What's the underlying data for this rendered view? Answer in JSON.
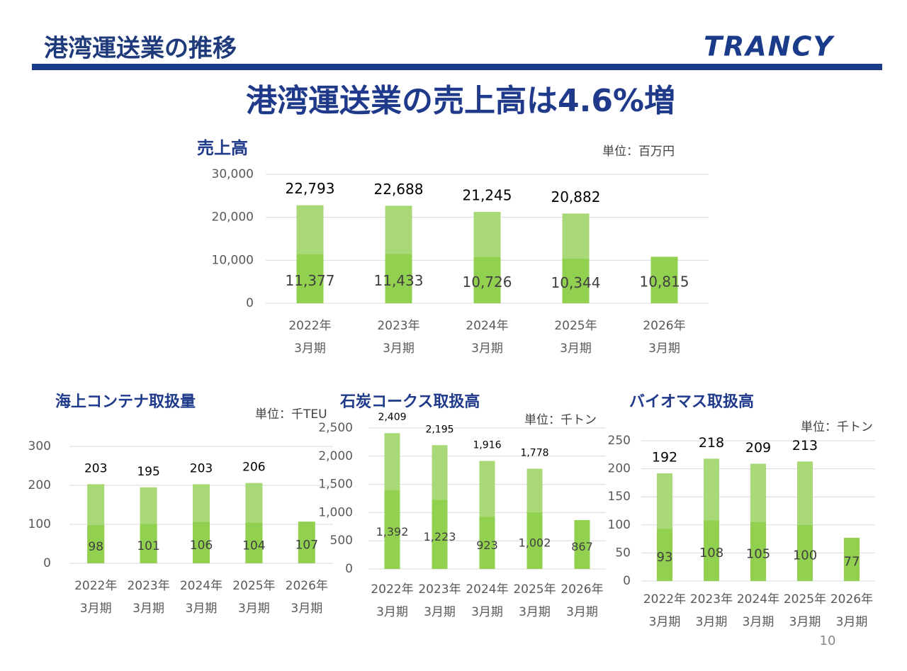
{
  "header": {
    "title": "港湾運送業の推移",
    "logo": "TRANCY"
  },
  "headline": "港湾運送業の売上高は4.6%増",
  "page_number": "10",
  "chart_data": [
    {
      "type": "bar",
      "overlap": true,
      "title": "売上高",
      "unit": "単位：百万円",
      "categories": [
        [
          "2022年",
          "3月期"
        ],
        [
          "2023年",
          "3月期"
        ],
        [
          "2024年",
          "3月期"
        ],
        [
          "2025年",
          "3月期"
        ],
        [
          "2026年",
          "3月期"
        ]
      ],
      "series": [
        {
          "color": "#a9d977",
          "values": [
            22793,
            22688,
            21245,
            20882,
            null
          ],
          "value_labels": [
            "22,793",
            "22,688",
            "21,245",
            "20,882",
            null
          ]
        },
        {
          "color": "#92d050",
          "values": [
            11377,
            11433,
            10726,
            10344,
            10815
          ],
          "value_labels": [
            "11,377",
            "11,433",
            "10,726",
            "10,344",
            "10,815"
          ]
        }
      ],
      "ylim": [
        0,
        30000
      ],
      "yticks": [
        0,
        {
          "value": 10000,
          "label": "10,000"
        },
        {
          "value": 20000,
          "label": "20,000"
        },
        {
          "value": 30000,
          "label": "30,000"
        }
      ],
      "grid": true
    },
    {
      "type": "bar",
      "overlap": true,
      "title": "海上コンテナ取扱量",
      "unit": "単位：千TEU",
      "categories": [
        [
          "2022年",
          "3月期"
        ],
        [
          "2023年",
          "3月期"
        ],
        [
          "2024年",
          "3月期"
        ],
        [
          "2025年",
          "3月期"
        ],
        [
          "2026年",
          "3月期"
        ]
      ],
      "series": [
        {
          "color": "#a9d977",
          "values": [
            203,
            195,
            203,
            206,
            null
          ]
        },
        {
          "color": "#92d050",
          "values": [
            98,
            101,
            106,
            104,
            107
          ]
        }
      ],
      "ylim": [
        0,
        300
      ],
      "yticks": [
        0,
        100,
        200,
        300
      ],
      "grid": true
    },
    {
      "type": "bar",
      "overlap": true,
      "title": "石炭コークス取扱高",
      "unit": "単位：千トン",
      "categories": [
        [
          "2022年",
          "3月期"
        ],
        [
          "2023年",
          "3月期"
        ],
        [
          "2024年",
          "3月期"
        ],
        [
          "2025年",
          "3月期"
        ],
        [
          "2026年",
          "3月期"
        ]
      ],
      "series": [
        {
          "color": "#a9d977",
          "values": [
            2409,
            2195,
            1916,
            1778,
            null
          ],
          "value_labels": [
            "2,409",
            "2,195",
            "1,916",
            "1,778",
            null
          ]
        },
        {
          "color": "#92d050",
          "values": [
            1392,
            1223,
            923,
            1002,
            867
          ],
          "value_labels": [
            "1,392",
            "1,223",
            "923",
            "1,002",
            "867"
          ]
        }
      ],
      "ylim": [
        0,
        2500
      ],
      "yticks": [
        0,
        500,
        {
          "value": 1000,
          "label": "1,000"
        },
        {
          "value": 1500,
          "label": "1,500"
        },
        {
          "value": 2000,
          "label": "2,000"
        },
        {
          "value": 2500,
          "label": "2,500"
        }
      ],
      "grid": true
    },
    {
      "type": "bar",
      "overlap": true,
      "title": "バイオマス取扱高",
      "unit": "単位：千トン",
      "categories": [
        [
          "2022年",
          "3月期"
        ],
        [
          "2023年",
          "3月期"
        ],
        [
          "2024年",
          "3月期"
        ],
        [
          "2025年",
          "3月期"
        ],
        [
          "2026年",
          "3月期"
        ]
      ],
      "series": [
        {
          "color": "#a9d977",
          "values": [
            192,
            218,
            209,
            213,
            null
          ]
        },
        {
          "color": "#92d050",
          "values": [
            93,
            108,
            105,
            100,
            77
          ]
        }
      ],
      "ylim": [
        0,
        250
      ],
      "yticks": [
        0,
        50,
        100,
        150,
        200,
        250
      ],
      "grid": true
    }
  ]
}
